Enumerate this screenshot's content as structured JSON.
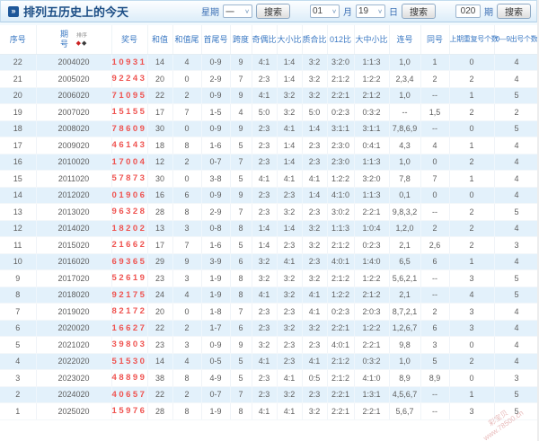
{
  "header": {
    "title": "排列五历史上的今天",
    "week_label": "星期",
    "week_value": "一",
    "month_value": "01",
    "month_label": "月",
    "day_value": "19",
    "day_label": "日",
    "issue_value": "020",
    "issue_label": "期",
    "search_label": "搜索"
  },
  "icons": {
    "title_arrow": "»",
    "chevron_down": "∨",
    "sort_diamond": "◆"
  },
  "table": {
    "sort_label": "排序",
    "columns": [
      "序号",
      "期号",
      "奖号",
      "和值",
      "和值尾",
      "首尾号",
      "跨度",
      "奇偶比",
      "大小比",
      "质合比",
      "012比",
      "大中小比",
      "连号",
      "同号",
      "上期重复号个数",
      "0—9出号个数"
    ],
    "rows": [
      [
        "22",
        "2004020",
        "10931",
        "14",
        "4",
        "0-9",
        "9",
        "4:1",
        "1:4",
        "3:2",
        "3:2:0",
        "1:1:3",
        "1,0",
        "1",
        "0",
        "4"
      ],
      [
        "21",
        "2005020",
        "92243",
        "20",
        "0",
        "2-9",
        "7",
        "2:3",
        "1:4",
        "3:2",
        "2:1:2",
        "1:2:2",
        "2,3,4",
        "2",
        "2",
        "4"
      ],
      [
        "20",
        "2006020",
        "71095",
        "22",
        "2",
        "0-9",
        "9",
        "4:1",
        "3:2",
        "3:2",
        "2:2:1",
        "2:1:2",
        "1,0",
        "--",
        "1",
        "5"
      ],
      [
        "19",
        "2007020",
        "15155",
        "17",
        "7",
        "1-5",
        "4",
        "5:0",
        "3:2",
        "5:0",
        "0:2:3",
        "0:3:2",
        "--",
        "1,5",
        "2",
        "2"
      ],
      [
        "18",
        "2008020",
        "78609",
        "30",
        "0",
        "0-9",
        "9",
        "2:3",
        "4:1",
        "1:4",
        "3:1:1",
        "3:1:1",
        "7,8,6,9",
        "--",
        "0",
        "5"
      ],
      [
        "17",
        "2009020",
        "46143",
        "18",
        "8",
        "1-6",
        "5",
        "2:3",
        "1:4",
        "2:3",
        "2:3:0",
        "0:4:1",
        "4,3",
        "4",
        "1",
        "4"
      ],
      [
        "16",
        "2010020",
        "17004",
        "12",
        "2",
        "0-7",
        "7",
        "2:3",
        "1:4",
        "2:3",
        "2:3:0",
        "1:1:3",
        "1,0",
        "0",
        "2",
        "4"
      ],
      [
        "15",
        "2011020",
        "57873",
        "30",
        "0",
        "3-8",
        "5",
        "4:1",
        "4:1",
        "4:1",
        "1:2:2",
        "3:2:0",
        "7,8",
        "7",
        "1",
        "4"
      ],
      [
        "14",
        "2012020",
        "01906",
        "16",
        "6",
        "0-9",
        "9",
        "2:3",
        "2:3",
        "1:4",
        "4:1:0",
        "1:1:3",
        "0,1",
        "0",
        "0",
        "4"
      ],
      [
        "13",
        "2013020",
        "96328",
        "28",
        "8",
        "2-9",
        "7",
        "2:3",
        "3:2",
        "2:3",
        "3:0:2",
        "2:2:1",
        "9,8,3,2",
        "--",
        "2",
        "5"
      ],
      [
        "12",
        "2014020",
        "18202",
        "13",
        "3",
        "0-8",
        "8",
        "1:4",
        "1:4",
        "3:2",
        "1:1:3",
        "1:0:4",
        "1,2,0",
        "2",
        "2",
        "4"
      ],
      [
        "11",
        "2015020",
        "21662",
        "17",
        "7",
        "1-6",
        "5",
        "1:4",
        "2:3",
        "3:2",
        "2:1:2",
        "0:2:3",
        "2,1",
        "2,6",
        "2",
        "3"
      ],
      [
        "10",
        "2016020",
        "69365",
        "29",
        "9",
        "3-9",
        "6",
        "3:2",
        "4:1",
        "2:3",
        "4:0:1",
        "1:4:0",
        "6,5",
        "6",
        "1",
        "4"
      ],
      [
        "9",
        "2017020",
        "52619",
        "23",
        "3",
        "1-9",
        "8",
        "3:2",
        "3:2",
        "3:2",
        "2:1:2",
        "1:2:2",
        "5,6,2,1",
        "--",
        "3",
        "5"
      ],
      [
        "8",
        "2018020",
        "92175",
        "24",
        "4",
        "1-9",
        "8",
        "4:1",
        "3:2",
        "4:1",
        "1:2:2",
        "2:1:2",
        "2,1",
        "--",
        "4",
        "5"
      ],
      [
        "7",
        "2019020",
        "82172",
        "20",
        "0",
        "1-8",
        "7",
        "2:3",
        "2:3",
        "4:1",
        "0:2:3",
        "2:0:3",
        "8,7,2,1",
        "2",
        "3",
        "4"
      ],
      [
        "6",
        "2020020",
        "16627",
        "22",
        "2",
        "1-7",
        "6",
        "2:3",
        "3:2",
        "3:2",
        "2:2:1",
        "1:2:2",
        "1,2,6,7",
        "6",
        "3",
        "4"
      ],
      [
        "5",
        "2021020",
        "39803",
        "23",
        "3",
        "0-9",
        "9",
        "3:2",
        "2:3",
        "2:3",
        "4:0:1",
        "2:2:1",
        "9,8",
        "3",
        "0",
        "4"
      ],
      [
        "4",
        "2022020",
        "51530",
        "14",
        "4",
        "0-5",
        "5",
        "4:1",
        "2:3",
        "4:1",
        "2:1:2",
        "0:3:2",
        "1,0",
        "5",
        "2",
        "4"
      ],
      [
        "3",
        "2023020",
        "48899",
        "38",
        "8",
        "4-9",
        "5",
        "2:3",
        "4:1",
        "0:5",
        "2:1:2",
        "4:1:0",
        "8,9",
        "8,9",
        "0",
        "3"
      ],
      [
        "2",
        "2024020",
        "40657",
        "22",
        "2",
        "0-7",
        "7",
        "2:3",
        "3:2",
        "2:3",
        "2:2:1",
        "1:3:1",
        "4,5,6,7",
        "--",
        "1",
        "5"
      ],
      [
        "1",
        "2025020",
        "15976",
        "28",
        "8",
        "1-9",
        "8",
        "4:1",
        "4:1",
        "3:2",
        "2:2:1",
        "2:2:1",
        "5,6,7",
        "--",
        "3",
        "5"
      ]
    ]
  },
  "watermark": {
    "line1": "彩宝贝",
    "line2": "www.78500.cn"
  },
  "colors": {
    "accent_blue": "#3a78c3",
    "prize_red": "#ef5350",
    "stripe_blue": "#e3f1fb",
    "title_navy": "#1b4d85",
    "sort_red": "#cc2222",
    "sort_black": "#3a3a3a"
  }
}
